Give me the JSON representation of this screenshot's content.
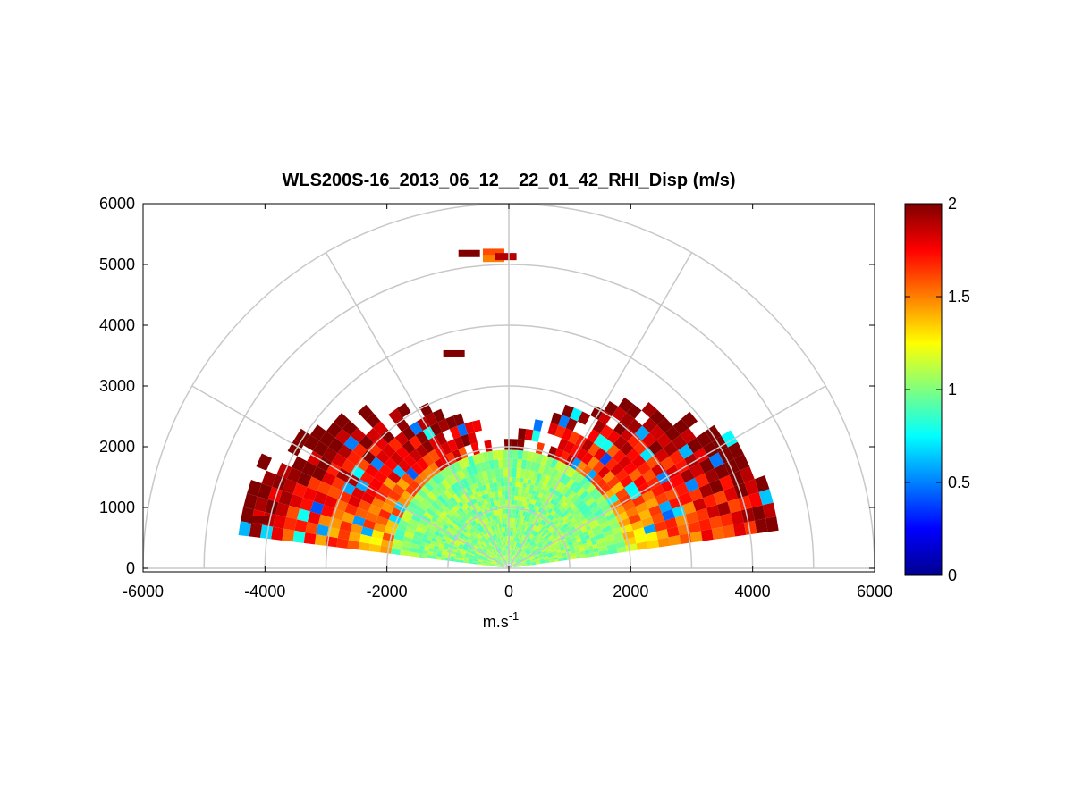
{
  "chart_data": {
    "type": "heatmap",
    "subtype": "polar-rhi-scan",
    "title": "WLS200S-16_2013_06_12__22_01_42_RHI_Disp (m/s)",
    "xlabel": "m.s",
    "xlabel_sup": "-1",
    "ylabel": "",
    "xlim": [
      -6000,
      6000
    ],
    "ylim": [
      0,
      6000
    ],
    "x_ticks": [
      "-6000",
      "-4000",
      "-2000",
      "0",
      "2000",
      "4000",
      "6000"
    ],
    "y_ticks": [
      "0",
      "1000",
      "2000",
      "3000",
      "4000",
      "5000",
      "6000"
    ],
    "polar_grid": {
      "rings": [
        1000,
        2000,
        3000,
        4000,
        5000,
        6000
      ],
      "spokes_deg": [
        0,
        30,
        60,
        90,
        120,
        150,
        180
      ],
      "color": "#c8c8c8"
    },
    "colorbar": {
      "colormap": "jet",
      "clim": [
        0,
        2
      ],
      "ticks": [
        "0",
        "0.5",
        "1",
        "1.5",
        "2"
      ]
    },
    "scan": {
      "min_elevation_deg": 8,
      "max_elevation_deg": 172,
      "core_range_m": 1950,
      "core_value": 1.0,
      "edge_value": 2.0
    },
    "isolated_cells": [
      {
        "x": -650,
        "y": 5180,
        "value": 2.0
      },
      {
        "x": -250,
        "y": 5200,
        "value": 1.6
      },
      {
        "x": -250,
        "y": 5100,
        "value": 1.5
      },
      {
        "x": -50,
        "y": 5130,
        "value": 1.9
      },
      {
        "x": -900,
        "y": 3530,
        "value": 2.0
      },
      {
        "x": -4100,
        "y": 800,
        "value": 2.0
      }
    ]
  }
}
